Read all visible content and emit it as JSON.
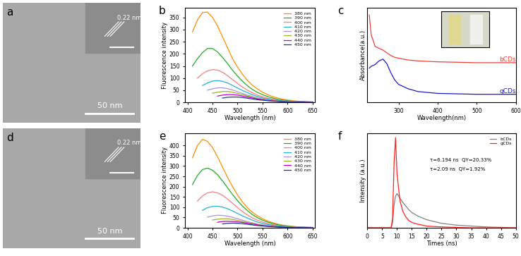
{
  "chart_data": [
    {
      "type": "image",
      "panel": "a",
      "scale_bar": "50 nm",
      "inset_label": "0.22 nm"
    },
    {
      "type": "line",
      "panel": "b",
      "x_label": "Wavelength (nm)",
      "y_label": "Fluorescence intensity",
      "x": [
        410,
        420,
        430,
        440,
        450,
        460,
        470,
        480,
        490,
        500,
        510,
        520,
        530,
        540,
        550,
        560,
        570,
        580,
        590,
        600,
        610,
        620,
        630,
        640,
        650
      ],
      "xlim": [
        395,
        655
      ],
      "xticks": [
        400,
        450,
        500,
        550,
        600,
        650
      ],
      "ylim": [
        0,
        390
      ],
      "yticks": [
        0,
        50,
        100,
        150,
        200,
        250,
        300,
        350
      ],
      "legend": "upper right",
      "series": [
        {
          "name": "380 nm",
          "color": "#ff8c00",
          "values": [
            290,
            340,
            370,
            372,
            350,
            315,
            270,
            225,
            180,
            145,
            115,
            90,
            70,
            55,
            42,
            32,
            24,
            18,
            13,
            10,
            7,
            5,
            4,
            3,
            2
          ]
        },
        {
          "name": "390 nm",
          "color": "#22aa22",
          "values": [
            150,
            180,
            205,
            222,
            222,
            208,
            185,
            160,
            132,
            108,
            87,
            68,
            53,
            41,
            32,
            24,
            18,
            13,
            10,
            7,
            5,
            4,
            3,
            2,
            2
          ]
        },
        {
          "name": "400 nm",
          "color": "#f08080",
          "values": [
            null,
            100,
            118,
            130,
            135,
            133,
            124,
            110,
            94,
            78,
            63,
            50,
            39,
            30,
            23,
            17,
            13,
            10,
            7,
            5,
            4,
            3,
            2,
            2,
            1
          ]
        },
        {
          "name": "410 nm",
          "color": "#20b2d0",
          "values": [
            null,
            null,
            70,
            80,
            88,
            90,
            87,
            80,
            70,
            59,
            49,
            40,
            31,
            24,
            18,
            14,
            10,
            8,
            6,
            4,
            3,
            2,
            2,
            1,
            1
          ]
        },
        {
          "name": "420 nm",
          "color": "#b090e0",
          "values": [
            null,
            null,
            null,
            50,
            56,
            60,
            60,
            57,
            51,
            44,
            37,
            30,
            24,
            18,
            14,
            11,
            8,
            6,
            4,
            3,
            2,
            2,
            1,
            1,
            1
          ]
        },
        {
          "name": "430 nm",
          "color": "#a0b020",
          "values": [
            null,
            null,
            null,
            null,
            38,
            42,
            45,
            45,
            42,
            37,
            32,
            26,
            21,
            16,
            12,
            9,
            7,
            5,
            4,
            3,
            2,
            1,
            1,
            1,
            0
          ]
        },
        {
          "name": "440 nm",
          "color": "#c000c0",
          "values": [
            null,
            null,
            null,
            null,
            null,
            26,
            30,
            32,
            32,
            30,
            26,
            22,
            18,
            14,
            11,
            8,
            6,
            5,
            3,
            2,
            2,
            1,
            1,
            1,
            0
          ]
        },
        {
          "name": "450 nm",
          "color": "#1f3a93",
          "values": [
            null,
            null,
            null,
            null,
            null,
            null,
            18,
            21,
            22,
            22,
            20,
            17,
            14,
            11,
            9,
            7,
            5,
            4,
            3,
            2,
            1,
            1,
            1,
            0,
            0
          ]
        }
      ]
    },
    {
      "type": "line",
      "panel": "c",
      "x_label": "Wavelength(nm)",
      "y_label": "Absorbance(a.u.)",
      "x": [
        225,
        230,
        240,
        250,
        260,
        270,
        280,
        290,
        300,
        325,
        350,
        400,
        450,
        500,
        550,
        600
      ],
      "xlim": [
        220,
        600
      ],
      "xticks": [
        300,
        400,
        500,
        600
      ],
      "ylim": [
        0,
        1.05
      ],
      "tick_labels": "x",
      "series": [
        {
          "name": "bCDs",
          "color": "#e8413a",
          "values": [
            0.97,
            0.75,
            0.62,
            0.6,
            0.58,
            0.55,
            0.52,
            0.5,
            0.49,
            0.47,
            0.46,
            0.45,
            0.445,
            0.44,
            0.44,
            0.44
          ]
        },
        {
          "name": "gCDs",
          "color": "#1a1acc",
          "values": [
            0.38,
            0.4,
            0.42,
            0.46,
            0.48,
            0.43,
            0.33,
            0.25,
            0.2,
            0.15,
            0.12,
            0.1,
            0.095,
            0.09,
            0.09,
            0.09
          ]
        }
      ]
    },
    {
      "type": "image",
      "panel": "d",
      "scale_bar": "50 nm",
      "inset_label": "0.22 nm"
    },
    {
      "type": "line",
      "panel": "e",
      "x_label": "Wavelength (nm)",
      "y_label": "Fluorescence intensity",
      "x": [
        410,
        420,
        430,
        440,
        450,
        460,
        470,
        480,
        490,
        500,
        510,
        520,
        530,
        540,
        550,
        560,
        570,
        580,
        590,
        600,
        610,
        620,
        630,
        640,
        650
      ],
      "xlim": [
        395,
        655
      ],
      "xticks": [
        400,
        450,
        500,
        550,
        600,
        650
      ],
      "ylim": [
        0,
        460
      ],
      "yticks": [
        0,
        50,
        100,
        150,
        200,
        250,
        300,
        350,
        400
      ],
      "legend": "upper right",
      "series": [
        {
          "name": "380 nm",
          "color": "#ff8c00",
          "values": [
            340,
            400,
            430,
            420,
            390,
            345,
            295,
            245,
            200,
            160,
            125,
            97,
            75,
            58,
            44,
            33,
            25,
            18,
            13,
            10,
            7,
            5,
            4,
            3,
            2
          ]
        },
        {
          "name": "390 nm",
          "color": "#22aa22",
          "values": [
            210,
            255,
            283,
            290,
            280,
            258,
            228,
            195,
            162,
            132,
            105,
            83,
            64,
            49,
            37,
            28,
            21,
            15,
            11,
            8,
            6,
            4,
            3,
            2,
            2
          ]
        },
        {
          "name": "400 nm",
          "color": "#f08080",
          "values": [
            null,
            130,
            155,
            170,
            175,
            170,
            158,
            140,
            119,
            98,
            79,
            62,
            48,
            37,
            28,
            21,
            15,
            11,
            8,
            6,
            4,
            3,
            2,
            2,
            1
          ]
        },
        {
          "name": "410 nm",
          "color": "#20b2d0",
          "values": [
            null,
            null,
            85,
            98,
            104,
            105,
            101,
            93,
            82,
            70,
            58,
            47,
            37,
            28,
            21,
            16,
            12,
            9,
            7,
            5,
            3,
            2,
            2,
            1,
            1
          ]
        },
        {
          "name": "420 nm",
          "color": "#b090e0",
          "values": [
            null,
            null,
            null,
            52,
            58,
            61,
            60,
            57,
            51,
            44,
            37,
            30,
            24,
            18,
            14,
            11,
            8,
            6,
            4,
            3,
            2,
            2,
            1,
            1,
            1
          ]
        },
        {
          "name": "430 nm",
          "color": "#a0b020",
          "values": [
            null,
            null,
            null,
            null,
            38,
            42,
            44,
            44,
            41,
            36,
            31,
            26,
            21,
            16,
            12,
            9,
            7,
            5,
            4,
            3,
            2,
            1,
            1,
            1,
            0
          ]
        },
        {
          "name": "440 nm",
          "color": "#c000c0",
          "values": [
            null,
            null,
            null,
            null,
            null,
            27,
            31,
            32,
            31,
            29,
            26,
            22,
            18,
            14,
            11,
            8,
            6,
            5,
            3,
            2,
            2,
            1,
            1,
            1,
            0
          ]
        },
        {
          "name": "450 nm",
          "color": "#1f3a93",
          "values": [
            null,
            null,
            null,
            null,
            null,
            null,
            19,
            22,
            23,
            22,
            20,
            17,
            14,
            11,
            9,
            7,
            5,
            4,
            3,
            2,
            1,
            1,
            1,
            0,
            0
          ]
        }
      ]
    },
    {
      "type": "line",
      "panel": "f",
      "x_label": "Times (ns)",
      "y_label": "Intensity (a.u.)",
      "x": [
        0,
        8,
        8.5,
        9,
        9.5,
        10,
        11,
        12,
        13,
        14,
        15,
        17,
        20,
        25,
        30,
        35,
        40,
        45,
        50
      ],
      "xlim": [
        0,
        50
      ],
      "xticks": [
        0,
        5,
        10,
        15,
        20,
        25,
        30,
        35,
        40,
        45,
        50
      ],
      "ylim": [
        0,
        1.05
      ],
      "tick_labels": "x",
      "legend": "upper right",
      "annotations": [
        "τ=6.194 ns  QY=20.33%",
        "τ=2.09 ns  QY=1.92%"
      ],
      "series": [
        {
          "name": "bCDs",
          "color": "#808080",
          "values": [
            0,
            0,
            0.05,
            0.25,
            0.35,
            0.38,
            0.33,
            0.28,
            0.24,
            0.2,
            0.17,
            0.13,
            0.09,
            0.05,
            0.03,
            0.02,
            0.01,
            0.005,
            0
          ]
        },
        {
          "name": "gCDs",
          "color": "#ff2020",
          "values": [
            0,
            0,
            0.1,
            0.7,
            1.0,
            0.6,
            0.3,
            0.18,
            0.12,
            0.08,
            0.06,
            0.04,
            0.02,
            0.01,
            0.005,
            0,
            0,
            0,
            0
          ]
        }
      ]
    }
  ]
}
